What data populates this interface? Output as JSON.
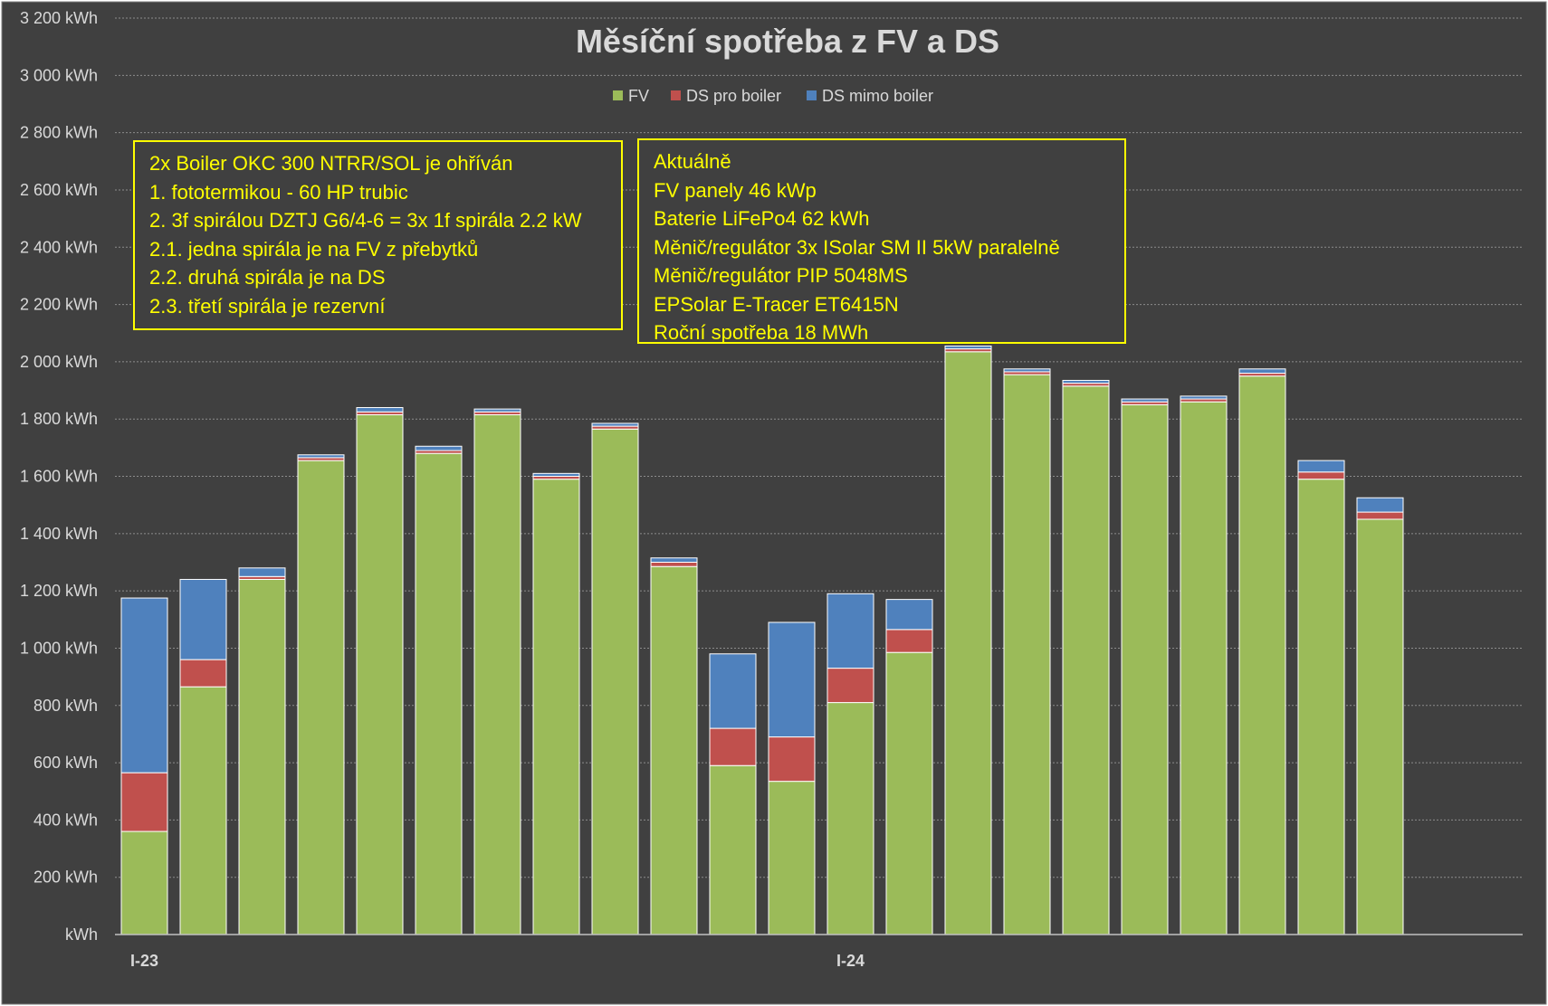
{
  "chart_data": {
    "type": "bar",
    "stacked": true,
    "title": "Měsíční spotřeba z FV a DS",
    "y_unit": "kWh",
    "ylim": [
      0,
      3200
    ],
    "y_ticks": [
      0,
      200,
      400,
      600,
      800,
      1000,
      1200,
      1400,
      1600,
      1800,
      2000,
      2200,
      2400,
      2600,
      2800,
      3000,
      3200
    ],
    "y_tick_labels": [
      "kWh",
      "200 kWh",
      "400 kWh",
      "600 kWh",
      "800 kWh",
      "1 000 kWh",
      "1 200 kWh",
      "1 400 kWh",
      "1 600 kWh",
      "1 800 kWh",
      "2 000 kWh",
      "2 200 kWh",
      "2 400 kWh",
      "2 600 kWh",
      "2 800 kWh",
      "3 000 kWh",
      "3 200 kWh"
    ],
    "x_tick_labels": [
      {
        "index": 0,
        "label": "I-23"
      },
      {
        "index": 12,
        "label": "I-24"
      }
    ],
    "grid": true,
    "legend_position": "top-center",
    "series": [
      {
        "name": "FV",
        "color": "#9bbb59",
        "values": [
          360,
          865,
          1240,
          1655,
          1815,
          1680,
          1815,
          1590,
          1765,
          1285,
          590,
          535,
          810,
          985,
          2035,
          1955,
          1915,
          1850,
          1860,
          1950,
          1590,
          1450
        ]
      },
      {
        "name": "DS pro boiler",
        "color": "#c0504d",
        "values": [
          205,
          95,
          10,
          10,
          10,
          10,
          10,
          10,
          10,
          15,
          130,
          155,
          120,
          80,
          10,
          10,
          10,
          10,
          10,
          10,
          25,
          25
        ]
      },
      {
        "name": "DS mimo boiler",
        "color": "#4f81bd",
        "values": [
          610,
          280,
          30,
          10,
          15,
          15,
          10,
          10,
          10,
          15,
          260,
          400,
          260,
          105,
          10,
          10,
          10,
          10,
          10,
          15,
          40,
          50
        ]
      }
    ]
  },
  "notes": {
    "left": [
      "2x Boiler OKC 300 NTRR/SOL je ohříván",
      "1. fototermikou - 60 HP trubic",
      "2. 3f spirálou DZTJ G6/4-6 = 3x 1f spirála 2.2 kW",
      "2.1. jedna spirála je na FV z přebytků",
      "2.2. druhá spirála je na DS",
      "2.3. třetí spirála je rezervní"
    ],
    "right": [
      "Aktuálně",
      "FV panely 46 kWp",
      "Baterie LiFePo4 62 kWh",
      "Měnič/regulátor 3x ISolar SM II 5kW paralelně",
      "Měnič/regulátor PIP 5048MS",
      "EPSolar E-Tracer ET6415N",
      "Roční spotřeba 18 MWh"
    ]
  }
}
